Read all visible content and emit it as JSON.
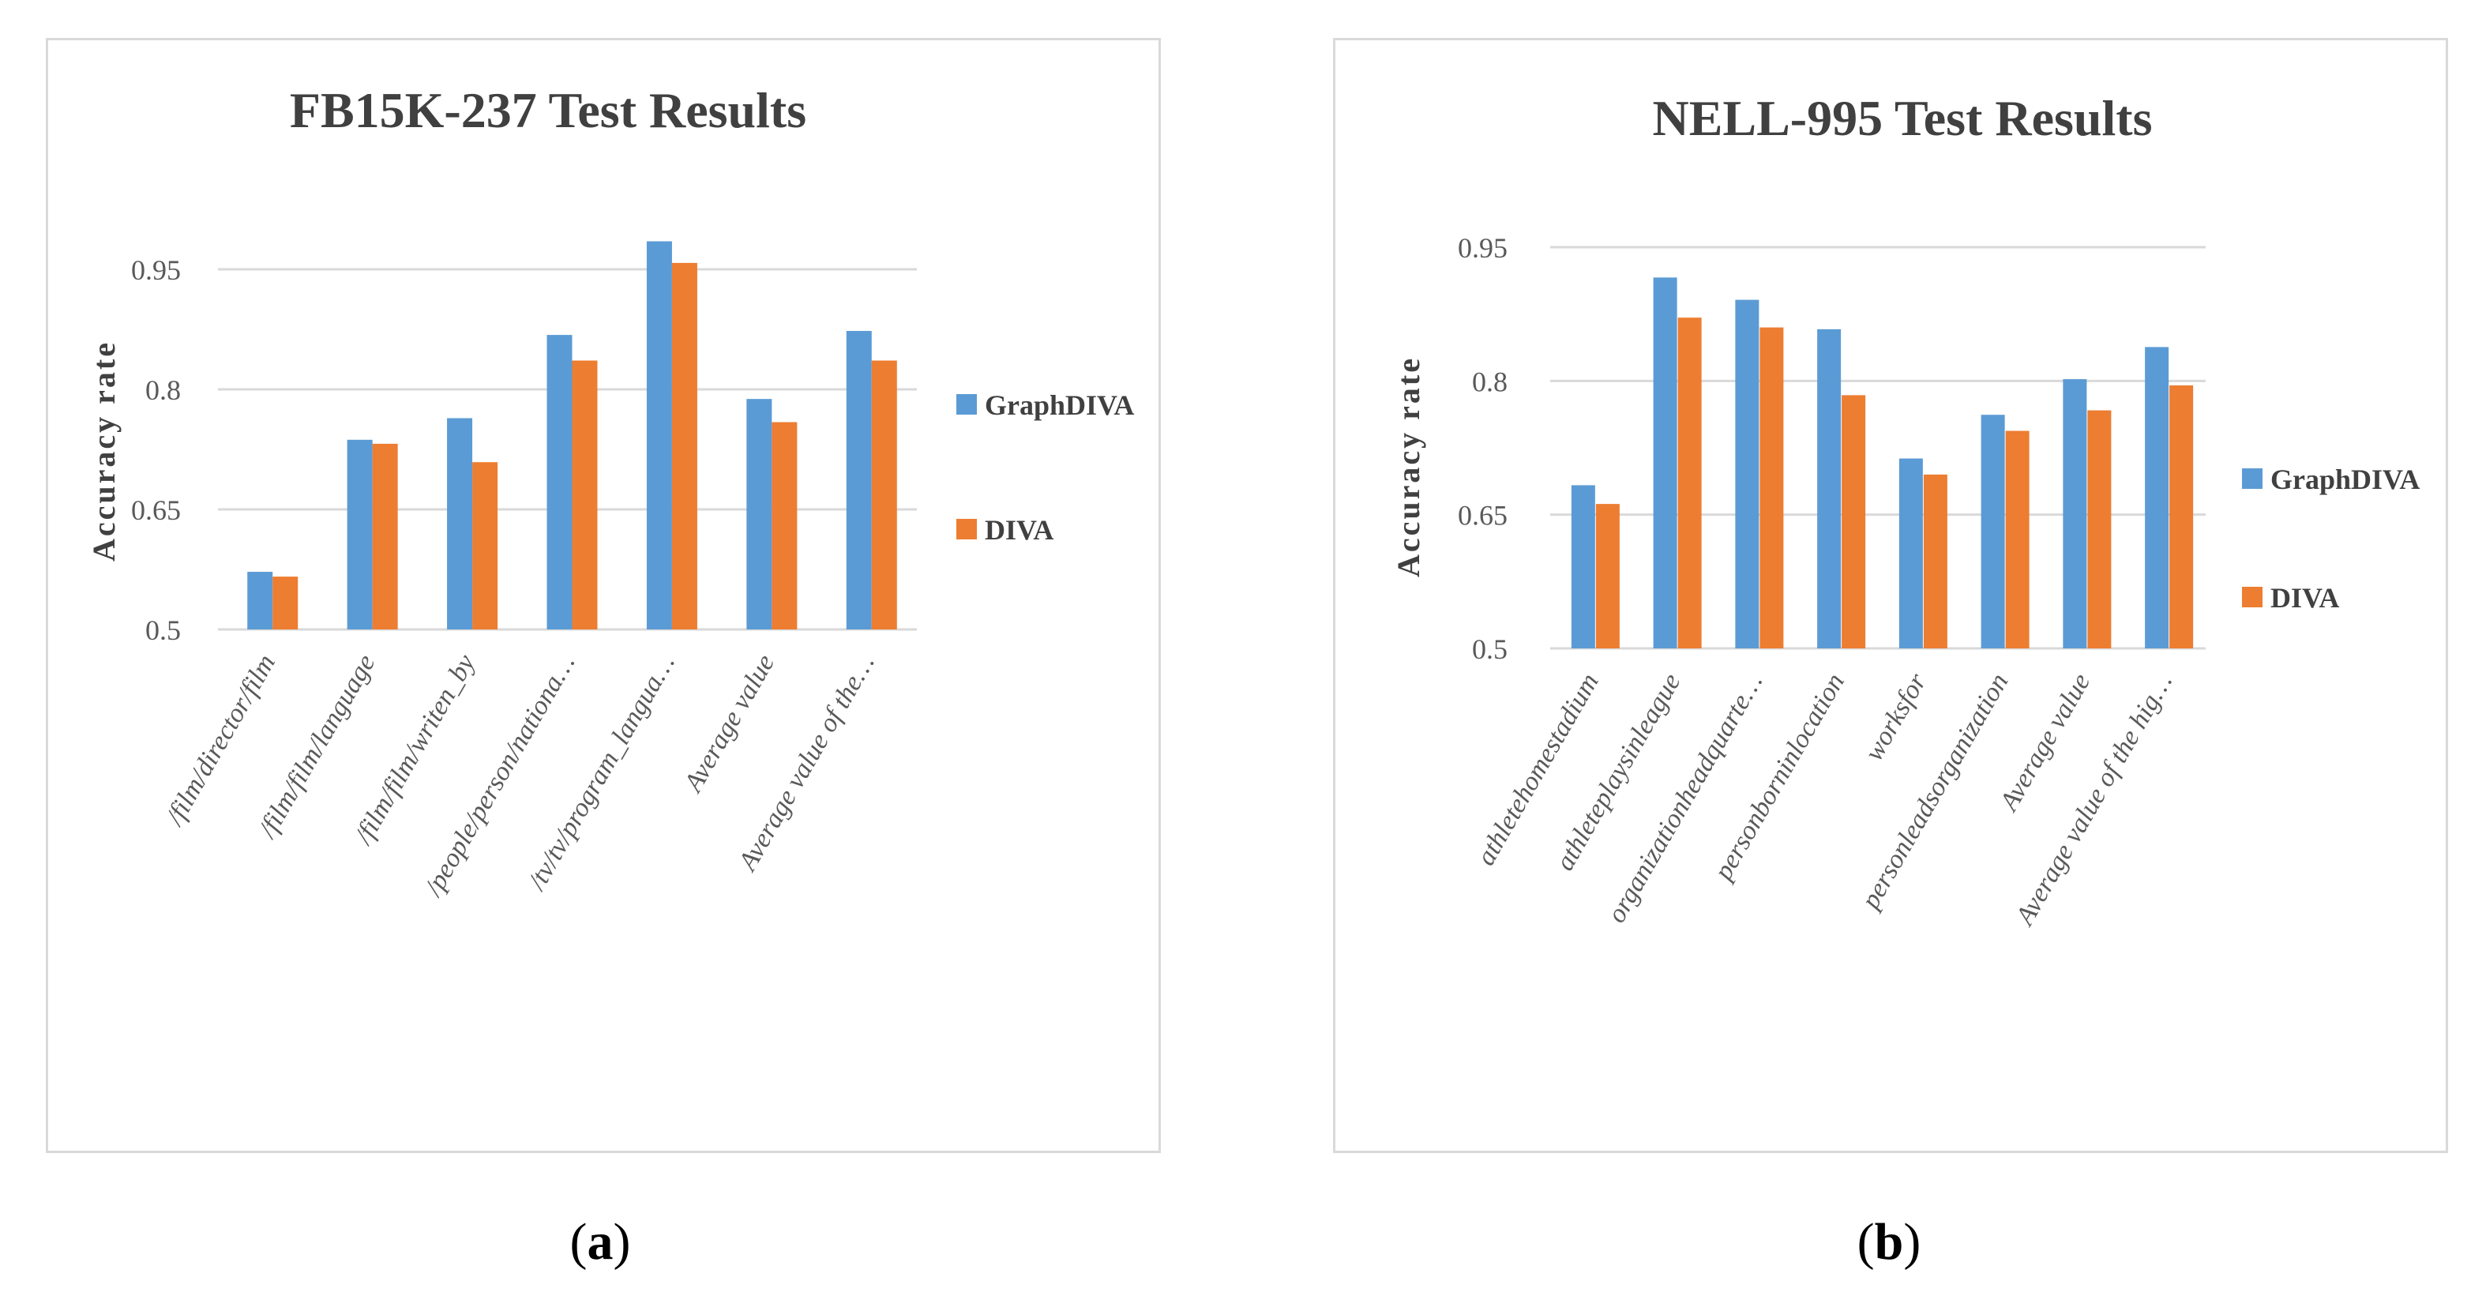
{
  "colors": {
    "graphdiva": "#5b9bd5",
    "diva": "#ed7d31"
  },
  "captions": {
    "a": "a",
    "b": "b"
  },
  "chart_data": [
    {
      "type": "bar",
      "title": "FB15K-237 Test Results",
      "xlabel": "",
      "ylabel": "Accuracy rate",
      "ylim": [
        0.5,
        0.95
      ],
      "yticks": [
        "0.5",
        "0.65",
        "0.8",
        "0.95"
      ],
      "ytick_values": [
        0.5,
        0.65,
        0.8,
        0.95
      ],
      "grid": true,
      "legend": "right",
      "categories": [
        "/film/director/film",
        "/film/film/language",
        "/film/film/writen_by",
        "/people/person/nationa…",
        "/tv/tv/program_langua…",
        "Average value",
        "Average value of the…"
      ],
      "series": [
        {
          "name": "GraphDIVA",
          "values": [
            0.572,
            0.737,
            0.764,
            0.868,
            0.985,
            0.788,
            0.873
          ]
        },
        {
          "name": "DIVA",
          "values": [
            0.566,
            0.732,
            0.709,
            0.836,
            0.958,
            0.759,
            0.836
          ]
        }
      ]
    },
    {
      "type": "bar",
      "title": "NELL-995 Test Results",
      "xlabel": "",
      "ylabel": "Accuracy rate",
      "ylim": [
        0.5,
        0.95
      ],
      "yticks": [
        "0.5",
        "0.65",
        "0.8",
        "0.95"
      ],
      "ytick_values": [
        0.5,
        0.65,
        0.8,
        0.95
      ],
      "grid": true,
      "legend": "right",
      "categories": [
        "athletehomestadium",
        "athleteplaysinleague",
        "organizationheadquarte…",
        "personborninlocation",
        "worksfor",
        "personleadsorganization",
        "Average value",
        "Average value of the hig…"
      ],
      "series": [
        {
          "name": "GraphDIVA",
          "values": [
            0.683,
            0.916,
            0.891,
            0.858,
            0.713,
            0.762,
            0.802,
            0.838
          ]
        },
        {
          "name": "DIVA",
          "values": [
            0.662,
            0.871,
            0.86,
            0.784,
            0.695,
            0.744,
            0.767,
            0.795
          ]
        }
      ]
    }
  ]
}
